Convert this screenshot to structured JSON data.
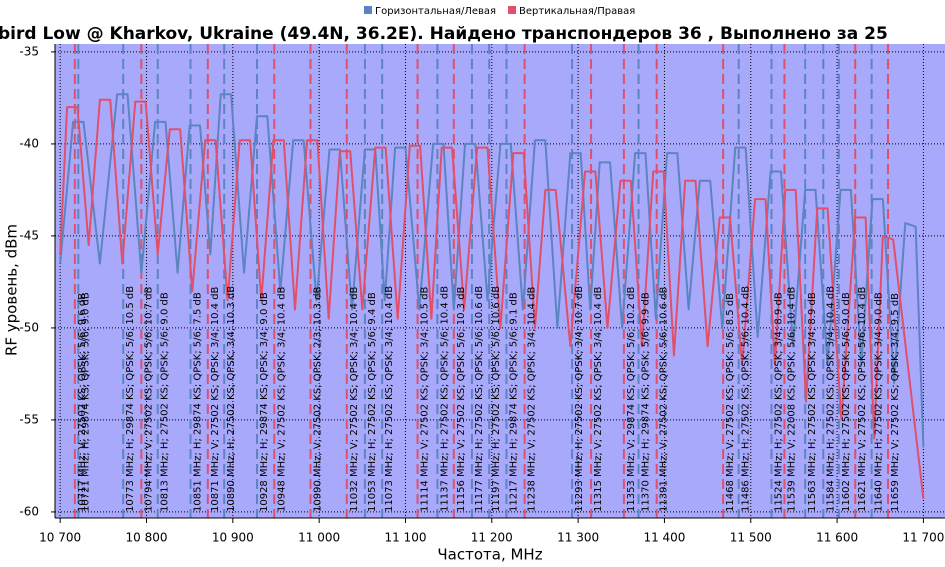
{
  "chart_data": {
    "type": "line",
    "title": "bird Low @ Kharkov, Ukraine (49.4N, 36.2E). Найдено транспондеров 36 , Выполнено за 25",
    "x_label": "Частота, MHz",
    "y_label": "RF уровень, dBm",
    "xlim": [
      10694,
      11725
    ],
    "ylim": [
      -60.33,
      -34.57
    ],
    "xticks": [
      {
        "value": 10700,
        "label": "10 700"
      },
      {
        "value": 10800,
        "label": "10 800"
      },
      {
        "value": 10900,
        "label": "10 900"
      },
      {
        "value": 11000,
        "label": "11 000"
      },
      {
        "value": 11100,
        "label": "11 100"
      },
      {
        "value": 11200,
        "label": "11 200"
      },
      {
        "value": 11300,
        "label": "11 300"
      },
      {
        "value": 11400,
        "label": "11 400"
      },
      {
        "value": 11500,
        "label": "11 500"
      },
      {
        "value": 11600,
        "label": "11 600"
      },
      {
        "value": 11700,
        "label": "11 700"
      }
    ],
    "yticks": [
      -35,
      -40,
      -45,
      -50,
      -55,
      -60
    ],
    "grid": true,
    "legend": "top",
    "plot_background": "#a9a9fc",
    "series": [
      {
        "name": "Горизонтальная/Левая",
        "color": "#5b84c0",
        "x": [
          10700,
          10715,
          10727,
          10746,
          10766,
          10778,
          10794,
          10810,
          10822,
          10836,
          10850,
          10862,
          10874,
          10886,
          10898,
          10913,
          10928,
          10940,
          10955,
          10970,
          10982,
          10997,
          11012,
          11024,
          11038,
          11053,
          11065,
          11076,
          11088,
          11100,
          11116,
          11132,
          11144,
          11156,
          11169,
          11181,
          11195,
          11210,
          11222,
          11236,
          11250,
          11262,
          11276,
          11291,
          11303,
          11314,
          11325,
          11337,
          11351,
          11366,
          11378,
          11390,
          11403,
          11415,
          11428,
          11441,
          11453,
          11467,
          11482,
          11494,
          11508,
          11523,
          11535,
          11549,
          11563,
          11575,
          11589,
          11604,
          11616,
          11628,
          11641,
          11653,
          11666,
          11679,
          11691,
          11700
        ],
        "values": [
          -46.5,
          -38.8,
          -38.8,
          -46.5,
          -37.3,
          -37.3,
          -47,
          -38.8,
          -38.8,
          -47,
          -39,
          -39,
          -46,
          -37.3,
          -37.3,
          -47,
          -38.5,
          -38.5,
          -48,
          -39.8,
          -39.8,
          -48.5,
          -40.3,
          -40.3,
          -49,
          -40.3,
          -40.3,
          -48.5,
          -40.2,
          -40.2,
          -49,
          -40,
          -40,
          -49,
          -40,
          -40,
          -48.5,
          -40,
          -40,
          -49,
          -39.8,
          -39.8,
          -50,
          -40.5,
          -40.5,
          -49,
          -41,
          -41,
          -50,
          -40.5,
          -40.5,
          -49.5,
          -40.5,
          -40.5,
          -49,
          -42,
          -42,
          -50,
          -40.2,
          -40.2,
          -50.5,
          -41.5,
          -41.5,
          -51,
          -42.5,
          -42.5,
          -52,
          -42.5,
          -42.5,
          -52,
          -43,
          -43,
          -53,
          -44.3,
          -44.5,
          -56.5
        ],
        "markers": [
          {
            "x": 10721,
            "label": "10721 MHz; H; 29874 KS; QPSK; 5/6; 9.0 dB"
          },
          {
            "x": 10773,
            "label": "10773 MHz; H; 29874 KS; QPSK; 5/6; 10.5 dB"
          },
          {
            "x": 10813,
            "label": "10813 MHz; H; 27502 KS; QPSK; 5/6; 9.0 dB"
          },
          {
            "x": 10851,
            "label": "10851 MHz; H; 29874 KS; QPSK; 5/6; 7.5 dB"
          },
          {
            "x": 10890,
            "label": "10890 MHz; H; 27502 KS; QPSK; 3/4; 10.3 dB"
          },
          {
            "x": 10928,
            "label": "10928 MHz; H; 29874 KS; QPSK; 3/4; 9.0 dB"
          },
          {
            "x": 11053,
            "label": "11053 MHz; H; 27502 KS; QPSK; 5/6; 9.4 dB"
          },
          {
            "x": 11073,
            "label": "11073 MHz; H; 27502 KS; QPSK; 3/4; 10.4 dB"
          },
          {
            "x": 11137,
            "label": "11137 MHz; H; 27502 KS; QPSK; 5/6; 10.4 dB"
          },
          {
            "x": 11177,
            "label": "11177 MHz; H; 27502 KS; QPSK; 5/6; 10.6 dB"
          },
          {
            "x": 11197,
            "label": "11197 MHz; H; 27502 KS; QPSK; 5/6; 10.6 dB"
          },
          {
            "x": 11217,
            "label": "11217 MHz; H; 29874 KS; QPSK; 5/6; 9.1 dB"
          },
          {
            "x": 11293,
            "label": "11293 MHz; H; 27502 KS; QPSK; 3/4; 10.7 dB"
          },
          {
            "x": 11370,
            "label": "11370 MHz; H; 29874 KS; QPSK; 5/6; 9.9 dB"
          },
          {
            "x": 11486,
            "label": "11486 MHz; H; 27502 KS; QPSK; 5/6; 10.4 dB"
          },
          {
            "x": 11524,
            "label": "11524 MHz; H; 27502 KS; QPSK; 3/4; 8.9 dB"
          },
          {
            "x": 11563,
            "label": "11563 MHz; H; 27502 KS; QPSK; 3/4; 8.9 dB"
          },
          {
            "x": 11584,
            "label": "11584 MHz; H; 27502 KS; QPSK; 3/4; 10.4 dB"
          },
          {
            "x": 11602,
            "label": "11602 MHz; H; 27502 KS; QPSK; 5/6; 9.0 dB"
          },
          {
            "x": 11640,
            "label": "11640 MHz; H; 27502 KS; QPSK; 3/4; 9.0 dB"
          }
        ]
      },
      {
        "name": "Вертикальная/Правая",
        "color": "#e0506a",
        "x": [
          10700,
          10708,
          10720,
          10733,
          10746,
          10758,
          10772,
          10787,
          10799,
          10813,
          10827,
          10839,
          10853,
          10868,
          10880,
          10894,
          10908,
          10920,
          10933,
          10947,
          10959,
          10972,
          10986,
          10998,
          11011,
          11024,
          11036,
          11050,
          11065,
          11077,
          11091,
          11105,
          11117,
          11130,
          11142,
          11154,
          11168,
          11183,
          11195,
          11210,
          11225,
          11237,
          11250,
          11262,
          11274,
          11291,
          11308,
          11320,
          11334,
          11349,
          11361,
          11374,
          11387,
          11399,
          11411,
          11424,
          11436,
          11450,
          11464,
          11476,
          11490,
          11505,
          11517,
          11528,
          11540,
          11552,
          11564,
          11577,
          11589,
          11605,
          11621,
          11633,
          11643,
          11653,
          11665,
          11700
        ],
        "values": [
          -46,
          -38,
          -38,
          -45.5,
          -37.6,
          -37.6,
          -46.5,
          -37.7,
          -37.7,
          -46,
          -39.2,
          -39.2,
          -48,
          -39.8,
          -39.8,
          -48.5,
          -39.8,
          -39.8,
          -48.5,
          -39.8,
          -39.8,
          -49,
          -39.8,
          -39.8,
          -49.5,
          -40.4,
          -40.4,
          -49,
          -40.2,
          -40.2,
          -49.5,
          -40.1,
          -40.1,
          -49.5,
          -40.2,
          -40.2,
          -49,
          -40.2,
          -40.2,
          -50,
          -40.5,
          -40.5,
          -50,
          -42.5,
          -42.5,
          -51,
          -41.5,
          -41.5,
          -50,
          -42,
          -42,
          -51,
          -41.5,
          -41.5,
          -51.5,
          -42,
          -42,
          -51,
          -44,
          -44,
          -52,
          -43,
          -43,
          -52,
          -42.5,
          -42.5,
          -54,
          -43.5,
          -43.5,
          -55,
          -44,
          -44,
          -56,
          -45,
          -45.2,
          -59.3
        ],
        "markers": [
          {
            "x": 10717,
            "label": "10717 MHz; V; 27502 KS; QPSK; 5/6; 9.6 dB"
          },
          {
            "x": 10794,
            "label": "10794 MHz; V; 27502 KS; QPSK; 5/6; 10.7 dB"
          },
          {
            "x": 10871,
            "label": "10871 MHz; V; 27502 KS; QPSK; 3/4; 10.4 dB"
          },
          {
            "x": 10948,
            "label": "10948 MHz; V; 27502 KS; QPSK; 3/4; 10.4 dB"
          },
          {
            "x": 10990,
            "label": "10990 MHz; V; 27502 KS; QPSK; 2/3; 10.3 dB"
          },
          {
            "x": 11032,
            "label": "11032 MHz; V; 27502 KS; QPSK; 3/4; 10.4 dB"
          },
          {
            "x": 11114,
            "label": "11114 MHz; V; 27502 KS; QPSK; 3/4; 10.5 dB"
          },
          {
            "x": 11156,
            "label": "11156 MHz; V; 27502 KS; QPSK; 5/6; 10.3 dB"
          },
          {
            "x": 11238,
            "label": "11238 MHz; V; 27502 KS; QPSK; 3/4; 10.4 dB"
          },
          {
            "x": 11315,
            "label": "11315 MHz; V; 27502 KS; QPSK; 3/4; 10.4 dB"
          },
          {
            "x": 11353,
            "label": "11353 MHz; V; 29874 KS; QPSK; 5/6; 10.2 dB"
          },
          {
            "x": 11391,
            "label": "11391 MHz; V; 27502 KS; QPSK; 5/6; 10.6 dB"
          },
          {
            "x": 11468,
            "label": "11468 MHz; V; 27502 KS; QPSK; 5/6; 8.5 dB"
          },
          {
            "x": 11539,
            "label": "11539 MHz; V; 22008 KS; QPSK; 5/6; 10.4 dB"
          },
          {
            "x": 11621,
            "label": "11621 MHz; V; 27502 KS; QPSK; 5/6; 10.4 dB"
          },
          {
            "x": 11659,
            "label": "11659 MHz; V; 27502 KS; QPSK; 3/4; 9.5 dB"
          }
        ]
      }
    ]
  }
}
